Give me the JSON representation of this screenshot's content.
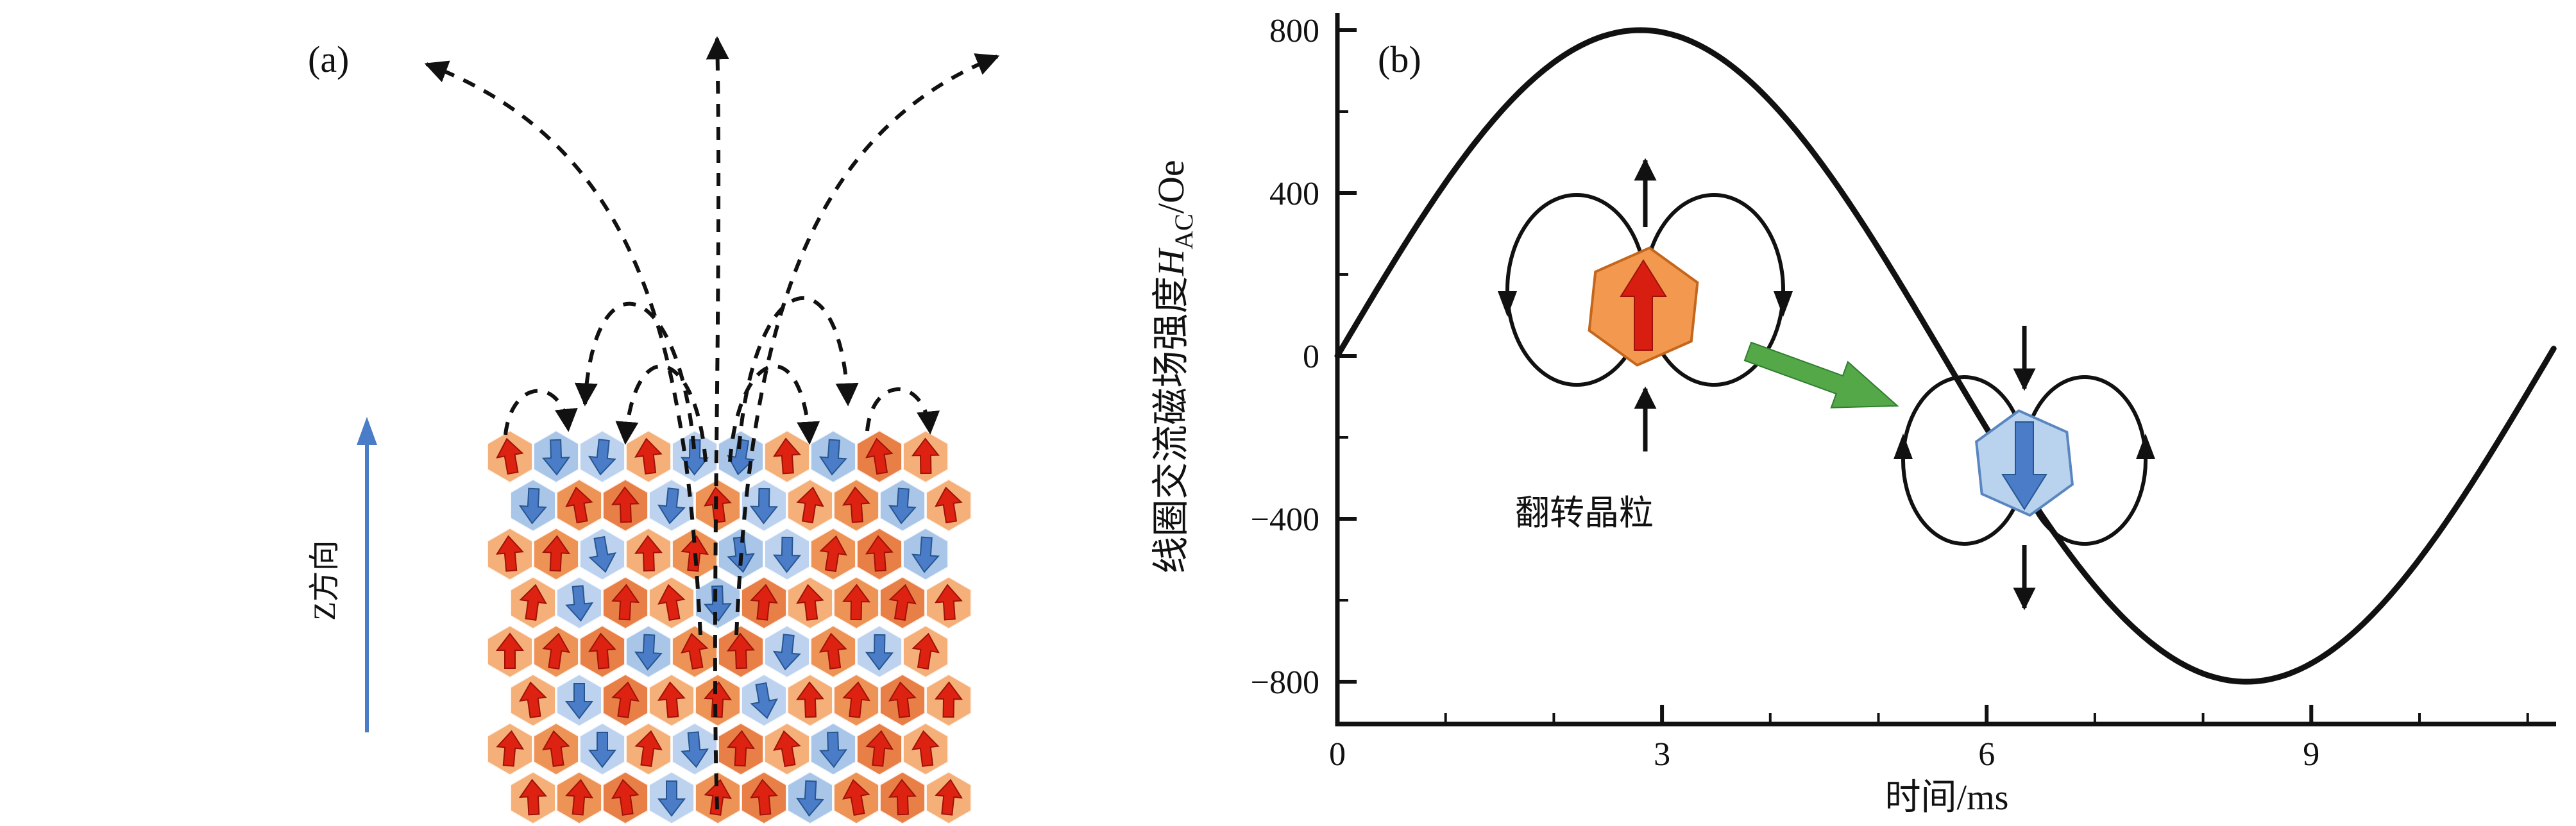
{
  "figure": {
    "background": "#ffffff"
  },
  "panel_a": {
    "label": "(a)",
    "z_axis_label": "Z方向",
    "z_axis_color": "#4a7cc8",
    "grain_grid": {
      "rows": [
        "UDDUDDUDUU",
        "DUUDUDUUDU",
        "UUDUUDDUUD",
        "UDUUDUUUUU",
        "UUUDUUDUDU",
        "UDUUUDUUUU",
        "UUDUDUUDUU",
        "UUUDUUDUUU"
      ],
      "up_fills": [
        "#f5b07a",
        "#ee9356",
        "#e87f46"
      ],
      "down_fills": [
        "#bcd2ee",
        "#a9c6e8"
      ],
      "up_arrow_color": "#dd2211",
      "up_arrow_edge": "#9e1208",
      "down_arrow_color": "#4a7cc8",
      "down_arrow_edge": "#27568f",
      "legend": {
        "U": "magnetization up (red)",
        "D": "magnetization down (blue)"
      }
    },
    "field_lines_desc": "dashed stray magnetic field lines above grain block"
  },
  "panel_b": {
    "label": "(b)",
    "ylabel_prefix": "线圈交流磁场强度",
    "ylabel_symbol": "H",
    "ylabel_subscript": "AC",
    "ylabel_unit": "/Oe",
    "xlabel": "时间/ms",
    "x_tick_labels": [
      "0",
      "3",
      "6",
      "9"
    ],
    "y_tick_labels": [
      "800",
      "400",
      "0",
      "−400",
      "−800"
    ],
    "flip_grain_label": "翻转晶粒",
    "curve_color": "#111111",
    "up_grain_arrow_color": "#d81e10",
    "down_grain_arrow_color": "#4a7cc8",
    "green_arrow_color": "#54a848"
  },
  "chart_data": {
    "type": "line",
    "xlabel": "时间/ms",
    "ylabel": "线圈交流磁场强度 H_AC / Oe",
    "xlim": [
      0,
      11.26
    ],
    "ylim": [
      -886,
      886
    ],
    "x_ticks": [
      0,
      3,
      6,
      9
    ],
    "y_ticks": [
      800,
      400,
      0,
      -400,
      -800
    ],
    "x_minor_ticks": [
      1,
      2,
      4,
      5,
      7,
      8,
      10,
      11
    ],
    "y_minor_ticks": [
      600,
      200,
      -200,
      -600
    ],
    "grid": false,
    "legend": false,
    "series": [
      {
        "name": "H_AC",
        "form": "sine",
        "amplitude_Oe": 800,
        "period_ms": 11.2,
        "phase": 0,
        "equation": "H_AC(t) = 800·sin(2π·t/11.2)",
        "key_points": [
          [
            0,
            0
          ],
          [
            2.8,
            800
          ],
          [
            5.6,
            0
          ],
          [
            8.4,
            -800
          ],
          [
            11.2,
            0
          ]
        ]
      }
    ],
    "annotations": [
      {
        "type": "grain-up",
        "t_ms": 2.8,
        "H_Oe": 120,
        "desc": "orange hexagonal grain, moment up, dipole field loops"
      },
      {
        "type": "grain-down",
        "t_ms": 6.3,
        "H_Oe": -290,
        "desc": "blue hexagonal grain, moment down, dipole field loops"
      },
      {
        "type": "flip-arrow",
        "from": "grain-up",
        "to": "grain-down",
        "color": "green"
      },
      {
        "type": "text",
        "text": "翻转晶粒",
        "t_ms": 2.4,
        "H_Oe": -400
      }
    ]
  }
}
